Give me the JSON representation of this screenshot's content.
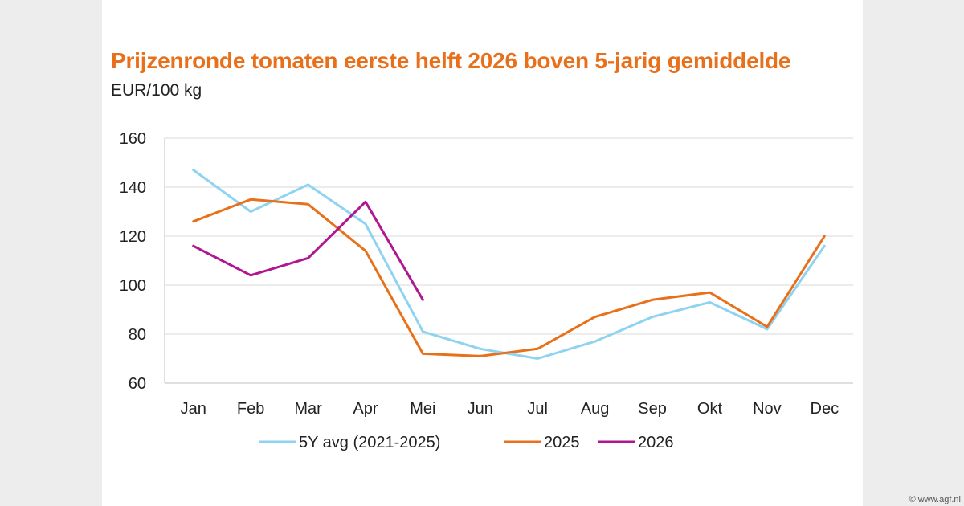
{
  "watermark": "© www.agf.nl",
  "chart_data": {
    "type": "line",
    "title": "Prijzenronde tomaten eerste helft 2026 boven 5-jarig gemiddelde",
    "subtitle": "EUR/100 kg",
    "xlabel": "",
    "ylabel": "",
    "ylim": [
      60,
      160
    ],
    "yticks": [
      60,
      80,
      100,
      120,
      140,
      160
    ],
    "grid": true,
    "legend_position": "bottom",
    "categories": [
      "Jan",
      "Feb",
      "Mar",
      "Apr",
      "Mei",
      "Jun",
      "Jul",
      "Aug",
      "Sep",
      "Okt",
      "Nov",
      "Dec"
    ],
    "series": [
      {
        "name": "5Y avg (2021-2025)",
        "color": "#8ED3F0",
        "values": [
          147,
          130,
          141,
          125,
          81,
          74,
          70,
          77,
          87,
          93,
          82,
          116
        ]
      },
      {
        "name": "2025",
        "color": "#E8701A",
        "values": [
          126,
          135,
          133,
          114,
          72,
          71,
          74,
          87,
          94,
          97,
          83,
          120
        ]
      },
      {
        "name": "2026",
        "color": "#B0168F",
        "values": [
          116,
          104,
          111,
          134,
          94,
          null,
          null,
          null,
          null,
          null,
          null,
          null
        ]
      }
    ]
  }
}
